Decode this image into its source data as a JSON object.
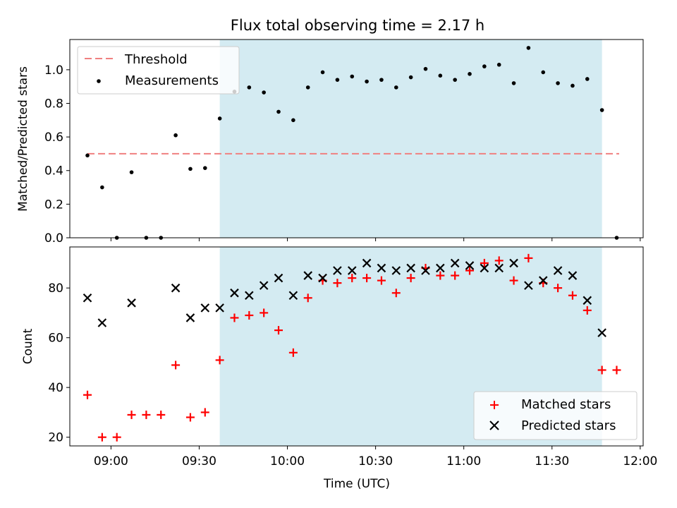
{
  "chart_data": [
    {
      "type": "scatter",
      "title": "Flux total observing time = 2.17 h",
      "xlabel": "",
      "ylabel": "Matched/Predicted stars",
      "ylim": [
        0,
        1.18
      ],
      "xlim": [
        "08:46",
        "12:01"
      ],
      "yticks": [
        0.0,
        0.2,
        0.4,
        0.6,
        0.8,
        1.0
      ],
      "ytick_labels": [
        "0.0",
        "0.2",
        "0.4",
        "0.6",
        "0.8",
        "1.0"
      ],
      "shaded_interval": [
        "09:37",
        "11:47"
      ],
      "shade_color": "#d4ebf2",
      "legend_placement": "upper-left",
      "threshold": {
        "name": "Threshold",
        "value": 0.5,
        "x_range": [
          "08:52",
          "12:02"
        ],
        "color": "#f08080",
        "style": "dashed"
      },
      "series": [
        {
          "name": "Measurements",
          "color": "#000000",
          "marker": "dot",
          "x": [
            "08:52",
            "08:57",
            "09:02",
            "09:07",
            "09:12",
            "09:17",
            "09:22",
            "09:27",
            "09:32",
            "09:37",
            "09:42",
            "09:47",
            "09:52",
            "09:57",
            "10:02",
            "10:07",
            "10:12",
            "10:17",
            "10:22",
            "10:27",
            "10:32",
            "10:37",
            "10:42",
            "10:47",
            "10:52",
            "10:57",
            "11:02",
            "11:07",
            "11:12",
            "11:17",
            "11:22",
            "11:27",
            "11:32",
            "11:37",
            "11:42",
            "11:47",
            "11:52"
          ],
          "y": [
            0.49,
            0.3,
            0.0,
            0.39,
            0.0,
            0.0,
            0.61,
            0.41,
            0.415,
            0.71,
            0.87,
            0.895,
            0.865,
            0.75,
            0.7,
            0.895,
            0.985,
            0.94,
            0.96,
            0.93,
            0.94,
            0.895,
            0.955,
            1.005,
            0.965,
            0.94,
            0.975,
            1.02,
            1.03,
            0.92,
            1.13,
            0.985,
            0.92,
            0.905,
            0.945,
            0.76,
            0.0
          ]
        }
      ]
    },
    {
      "type": "scatter",
      "title": "",
      "xlabel": "Time (UTC)",
      "ylabel": "Count",
      "ylim": [
        16.5,
        96.5
      ],
      "xlim": [
        "08:46",
        "12:01"
      ],
      "xticks": [
        "09:00",
        "09:30",
        "10:00",
        "10:30",
        "11:00",
        "11:30",
        "12:00"
      ],
      "yticks": [
        20,
        40,
        60,
        80
      ],
      "ytick_labels": [
        "20",
        "40",
        "60",
        "80"
      ],
      "shaded_interval": [
        "09:37",
        "11:47"
      ],
      "shade_color": "#d4ebf2",
      "legend_placement": "lower-right",
      "series": [
        {
          "name": "Matched stars",
          "color": "#ff0000",
          "marker": "plus",
          "x": [
            "08:52",
            "08:57",
            "09:02",
            "09:07",
            "09:12",
            "09:17",
            "09:22",
            "09:27",
            "09:32",
            "09:37",
            "09:42",
            "09:47",
            "09:52",
            "09:57",
            "10:02",
            "10:07",
            "10:12",
            "10:17",
            "10:22",
            "10:27",
            "10:32",
            "10:37",
            "10:42",
            "10:47",
            "10:52",
            "10:57",
            "11:02",
            "11:07",
            "11:12",
            "11:17",
            "11:22",
            "11:27",
            "11:32",
            "11:37",
            "11:42",
            "11:47",
            "11:52"
          ],
          "y": [
            37,
            20,
            20,
            29,
            29,
            29,
            49,
            28,
            30,
            51,
            68,
            69,
            70,
            63,
            54,
            76,
            83,
            82,
            84,
            84,
            83,
            78,
            84,
            88,
            85,
            85,
            87,
            90,
            91,
            83,
            92,
            82,
            80,
            77,
            71,
            47,
            47
          ]
        },
        {
          "name": "Predicted stars",
          "color": "#000000",
          "marker": "x",
          "x": [
            "08:52",
            "08:57",
            "09:07",
            "09:22",
            "09:27",
            "09:32",
            "09:37",
            "09:42",
            "09:47",
            "09:52",
            "09:57",
            "10:02",
            "10:07",
            "10:12",
            "10:17",
            "10:22",
            "10:27",
            "10:32",
            "10:37",
            "10:42",
            "10:47",
            "10:52",
            "10:57",
            "11:02",
            "11:07",
            "11:12",
            "11:17",
            "11:22",
            "11:27",
            "11:32",
            "11:37",
            "11:42",
            "11:47"
          ],
          "y": [
            76,
            66,
            74,
            80,
            68,
            72,
            72,
            78,
            77,
            81,
            84,
            77,
            85,
            84,
            87,
            87,
            90,
            88,
            87,
            88,
            87,
            88,
            90,
            89,
            88,
            88,
            90,
            81,
            83,
            87,
            85,
            75,
            62
          ]
        }
      ]
    }
  ]
}
